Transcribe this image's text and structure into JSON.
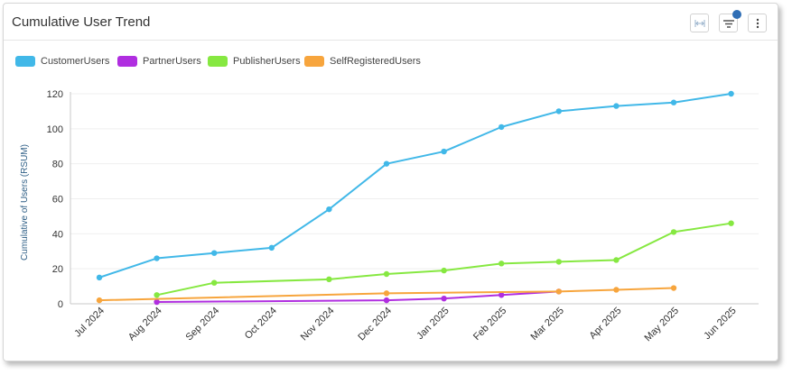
{
  "header": {
    "title": "Cumulative User Trend"
  },
  "colors": {
    "CustomerUsers": "#41b8e8",
    "PartnerUsers": "#b02ee0",
    "PublisherUsers": "#86e841",
    "SelfRegisteredUsers": "#f7a53d"
  },
  "chart_data": {
    "type": "line",
    "title": "Cumulative User Trend",
    "xlabel": "",
    "ylabel": "Cumulative of Users (RSUM)",
    "ylim": [
      0,
      120
    ],
    "yticks": [
      0,
      20,
      40,
      60,
      80,
      100,
      120
    ],
    "grid": true,
    "legend": "top-left",
    "categories": [
      "Jul 2024",
      "Aug 2024",
      "Sep 2024",
      "Oct 2024",
      "Nov 2024",
      "Dec 2024",
      "Jan 2025",
      "Feb 2025",
      "Mar 2025",
      "Apr 2025",
      "May 2025",
      "Jun 2025"
    ],
    "series": [
      {
        "name": "CustomerUsers",
        "values": [
          15,
          26,
          29,
          32,
          54,
          80,
          87,
          101,
          110,
          113,
          115,
          120
        ]
      },
      {
        "name": "PartnerUsers",
        "values": [
          null,
          1,
          null,
          null,
          null,
          2,
          3,
          5,
          7,
          null,
          null,
          null
        ]
      },
      {
        "name": "PublisherUsers",
        "values": [
          null,
          5,
          12,
          null,
          14,
          17,
          19,
          23,
          24,
          25,
          41,
          46
        ]
      },
      {
        "name": "SelfRegisteredUsers",
        "values": [
          2,
          null,
          null,
          null,
          null,
          6,
          null,
          null,
          7,
          8,
          9,
          null
        ]
      }
    ]
  }
}
